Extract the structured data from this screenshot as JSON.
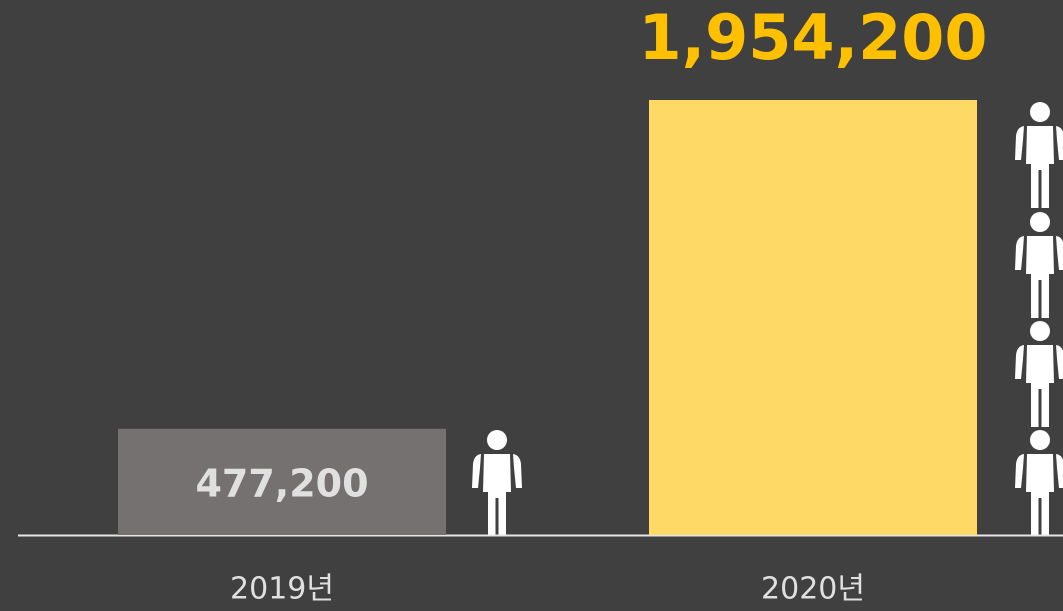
{
  "chart_data": {
    "type": "bar",
    "categories": [
      "2019년",
      "2020년"
    ],
    "values": [
      477200,
      1954200
    ],
    "value_labels": [
      "477,200",
      "1,954,200"
    ],
    "colors": [
      "#757170",
      "#ffd966"
    ],
    "label_colors": [
      "#e0e0e0",
      "#ffc000"
    ],
    "label_positions": [
      "inside",
      "above"
    ]
  }
}
